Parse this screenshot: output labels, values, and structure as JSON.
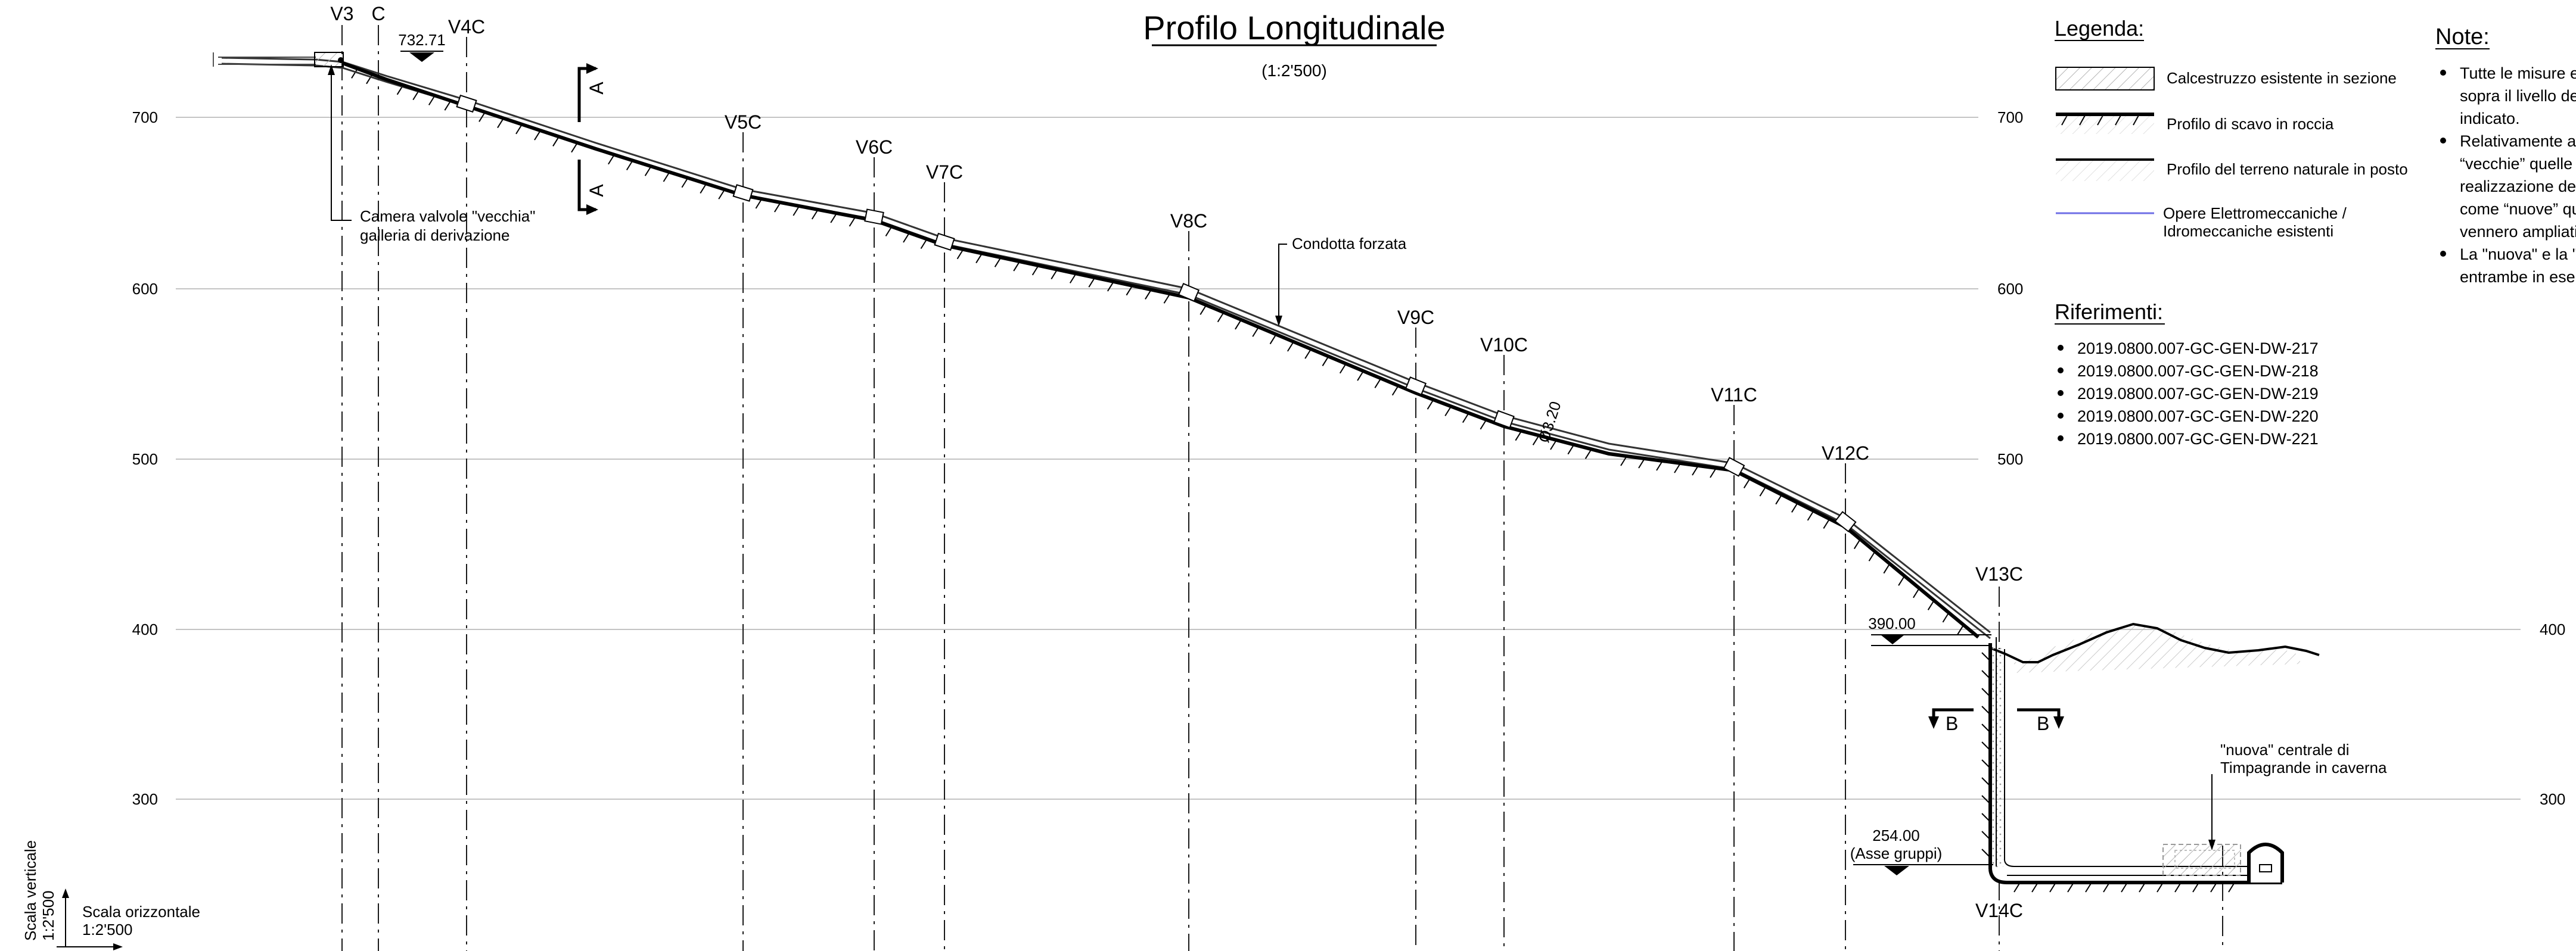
{
  "title": "Profilo Longitudinale",
  "scale": "(1:2'500)",
  "y_axis_labels": [
    "700",
    "600",
    "500",
    "400",
    "300"
  ],
  "sections": [
    "V3",
    "C",
    "V4C",
    "V5C",
    "V6C",
    "V7C",
    "V8C",
    "V9C",
    "V10C",
    "V11C",
    "V12C",
    "V13C",
    "V14C"
  ],
  "elevations": {
    "top": "732.71",
    "mid": "390.00",
    "bottom_value": "254.00",
    "bottom_note": "(Asse gruppi)"
  },
  "annotations": {
    "camera_line1": "Camera valvole \"vecchia\"",
    "camera_line2": "galleria di derivazione",
    "condotta": "Condotta forzata",
    "diameter": "Ø3.20",
    "centrale_line1": "\"nuova\" centrale di",
    "centrale_line2": "Timpagrande in caverna",
    "section_a": "A",
    "section_b": "B"
  },
  "scale_labels": {
    "vertical_title": "Scala verticale",
    "vertical_value": "1:2'500",
    "horizontal_title": "Scala orizzontale",
    "horizontal_value": "1:2'500"
  },
  "legend": {
    "heading": "Legenda:",
    "items": [
      "Calcestruzzo esistente in sezione",
      "Profilo di scavo in roccia",
      "Profilo del terreno naturale in posto"
    ],
    "opere_line1": "Opere Elettromeccaniche /",
    "opere_line2": "Idromeccaniche esistenti",
    "accent_color": "#6f6fe6"
  },
  "riferimenti": {
    "heading": "Riferimenti:",
    "items": [
      "2019.0800.007-GC-GEN-DW-217",
      "2019.0800.007-GC-GEN-DW-218",
      "2019.0800.007-GC-GEN-DW-219",
      "2019.0800.007-GC-GEN-DW-220",
      "2019.0800.007-GC-GEN-DW-221"
    ]
  },
  "notes": {
    "heading": "Note:",
    "lines": [
      "Tutte le misure e",
      "sopra il livello de",
      "indicato.",
      "Relativamente al",
      "“vecchie” quelle r",
      "realizzazione deg",
      "come “nuove” qu",
      "vennero ampliati",
      "La \"nuova\" e la \"v",
      "entrambe in eser"
    ]
  }
}
